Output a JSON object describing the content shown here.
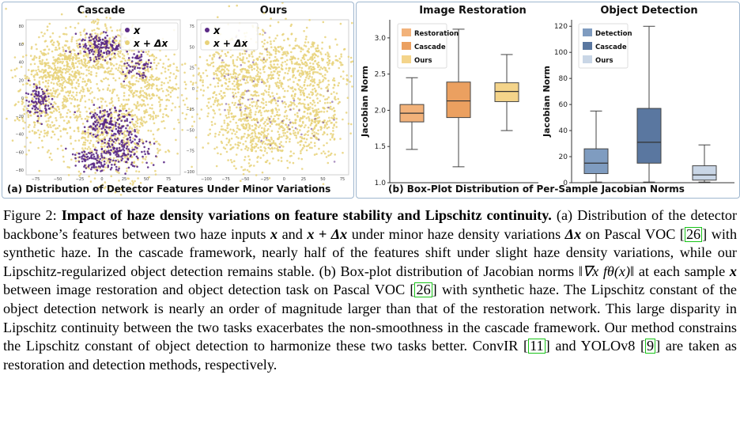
{
  "panel_a": {
    "caption": "(a) Distribution of Detector Features Under Minor Variations",
    "plots": [
      {
        "title": "Cascade",
        "x_ticks": [
          "−75",
          "−50",
          "−25",
          "0",
          "25",
          "50",
          "75"
        ],
        "y_ticks": [
          "80",
          "60",
          "40",
          "20",
          "0",
          "−20",
          "−40",
          "−60",
          "−80"
        ],
        "legend": [
          "x",
          "x + Δx"
        ]
      },
      {
        "title": "Ours",
        "x_ticks": [
          "−100",
          "−75",
          "−50",
          "−25",
          "0",
          "25",
          "50",
          "75"
        ],
        "y_ticks": [
          "75",
          "50",
          "25",
          "0",
          "−25",
          "−50",
          "−75",
          "−100"
        ],
        "legend": [
          "x",
          "x + Δx"
        ]
      }
    ],
    "colors": {
      "x": "#5b2a86",
      "x_plus_dx": "#e8d27a"
    }
  },
  "panel_b": {
    "caption": "(b) Box-Plot Distribution of Per-Sample Jacobian Norms",
    "chart_data": [
      {
        "type": "box",
        "title": "Image Restoration",
        "ylabel": "Jacobian Norm",
        "ylim": [
          1.0,
          3.25
        ],
        "y_ticks": [
          "1.0",
          "1.5",
          "2.0",
          "2.5",
          "3.0"
        ],
        "legend": [
          "Restoration",
          "Cascade",
          "Ours"
        ],
        "series": [
          {
            "name": "Restoration",
            "color": "#f2b27a",
            "whisker_low": 1.46,
            "q1": 1.84,
            "median": 1.96,
            "q3": 2.08,
            "whisker_high": 2.45
          },
          {
            "name": "Cascade",
            "color": "#eba060",
            "whisker_low": 1.22,
            "q1": 1.9,
            "median": 2.13,
            "q3": 2.39,
            "whisker_high": 3.12
          },
          {
            "name": "Ours",
            "color": "#f4d48a",
            "whisker_low": 1.72,
            "q1": 2.12,
            "median": 2.26,
            "q3": 2.38,
            "whisker_high": 2.77
          }
        ]
      },
      {
        "type": "box",
        "title": "Object Detection",
        "ylabel": "Jacobian Norm",
        "ylim": [
          0,
          125
        ],
        "y_ticks": [
          "0",
          "20",
          "40",
          "60",
          "80",
          "100",
          "120"
        ],
        "legend": [
          "Detection",
          "Cascade",
          "Ours"
        ],
        "series": [
          {
            "name": "Detection",
            "color": "#7f9cc0",
            "whisker_low": 0.5,
            "q1": 7,
            "median": 15,
            "q3": 26,
            "whisker_high": 55
          },
          {
            "name": "Cascade",
            "color": "#5a77a0",
            "whisker_low": 0.5,
            "q1": 15,
            "median": 31,
            "q3": 57,
            "whisker_high": 120
          },
          {
            "name": "Ours",
            "color": "#c9d6e6",
            "whisker_low": 0.5,
            "q1": 2,
            "median": 6,
            "q3": 13,
            "whisker_high": 29
          }
        ]
      }
    ]
  },
  "caption": {
    "figure_label": "Figure 2:",
    "bold_title": "Impact of haze density variations on feature stability and Lipschitz continuity.",
    "s_a_label": "(a)",
    "s1": "Distribution of the detector backbone’s features between two haze inputs",
    "x": "x",
    "and": "and",
    "x_plus_dx": "x + Δx",
    "s2": "under minor haze density variations",
    "dx": "Δx",
    "s3": "on Pascal VOC",
    "cite26": "26",
    "s4": "with synthetic haze. In the cascade framework, nearly half of the features shift under slight haze density variations, while our Lipschitz-regularized object detection remains stable. (b) Box-plot distribution of Jacobian norms",
    "jacobian": "‖∇x fθ(x)‖",
    "s5": "at each sample",
    "s6": "between image restoration and object detection task on Pascal VOC",
    "s7": "with synthetic haze. The Lipschitz constant of the object detection network is nearly an order of magnitude larger than that of the restoration network. This large disparity in Lipschitz continuity between the two tasks exacerbates the non-smoothness in the cascade framework. Our method constrains the Lipschitz constant of object detection to harmonize these two tasks better. ConvIR",
    "cite11": "11",
    "s8": "and YOLOv8",
    "cite9": "9",
    "s9": "are taken as restoration and detection methods, respectively."
  }
}
